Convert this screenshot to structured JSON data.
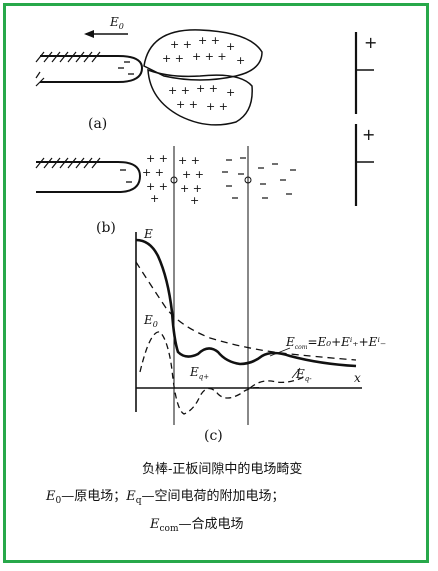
{
  "panels": {
    "a": {
      "label": "(a)",
      "field_label": "E",
      "field_sub": "0"
    },
    "b": {
      "label": "(b)"
    },
    "c": {
      "label": "(c)",
      "axis_y": "E",
      "axis_x": "x",
      "curve_labels": {
        "e0": {
          "main": "E",
          "sub": "0"
        },
        "eq_plus": {
          "main": "E",
          "sub": "q+"
        },
        "eq_minus": {
          "main": "E",
          "sub": "q-"
        },
        "ecom": {
          "text": "E",
          "sub": "com",
          "rest": "=E₀+Eⁱ₊+Eⁱ₋"
        }
      }
    }
  },
  "caption": {
    "line1": "负棒-正板间隙中的电场畸变",
    "line2_main": "E",
    "line2_sub": "0",
    "line2_text1": "—原电场；",
    "line2_main2": "E",
    "line2_sub2": "q",
    "line2_text2": "—空间电荷的附加电场；",
    "line3_main": "E",
    "line3_sub": "com",
    "line3_text": "—合成电场"
  },
  "colors": {
    "border": "#27a84a",
    "ink": "#111111"
  }
}
